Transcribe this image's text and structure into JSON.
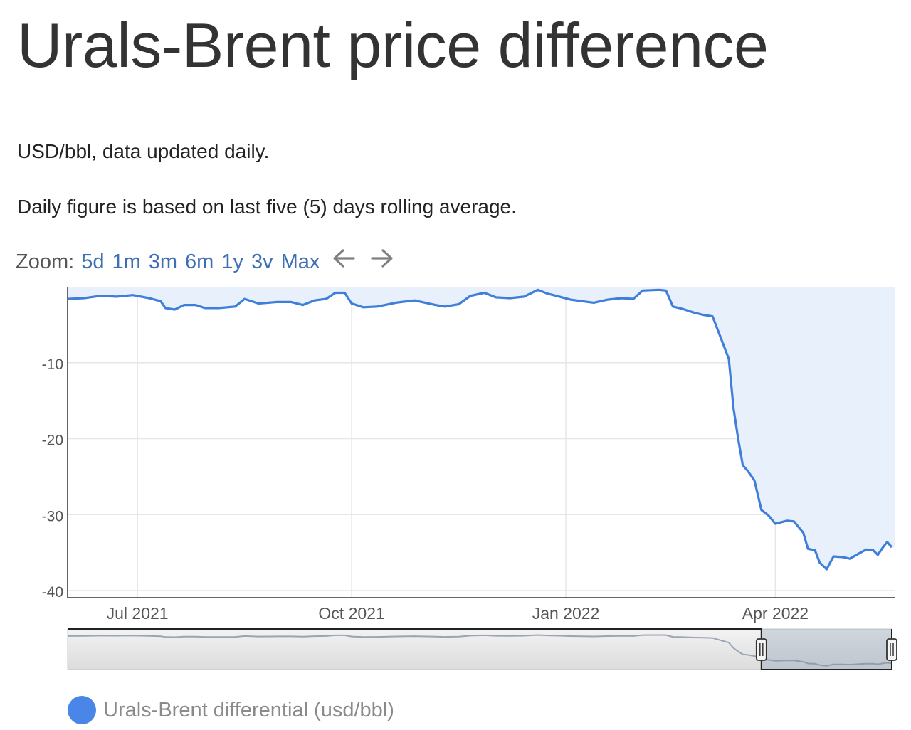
{
  "page": {
    "title": "Urals-Brent price difference",
    "desc1": "USD/bbl, data updated daily.",
    "desc2": "Daily figure is based on last five (5) days rolling average."
  },
  "zoom": {
    "label": "Zoom:",
    "options": [
      "5d",
      "1m",
      "3m",
      "6m",
      "1y",
      "3v",
      "Max"
    ],
    "back_icon": "arrow-left-icon",
    "forward_icon": "arrow-right-icon"
  },
  "colors": {
    "line": "#3f7fd9",
    "fill": "#e8f0fb",
    "grid": "#e6e6e6",
    "axis": "#333333",
    "navigator_track": "#dcdcdc",
    "zoom_link": "#3f6fb3",
    "legend_dot": "#4a86e8"
  },
  "legend": {
    "label": "Urals-Brent differential (usd/bbl)",
    "icon": "circle-marker-icon"
  },
  "chart_data": {
    "type": "area",
    "title": "",
    "xlabel": "",
    "ylabel": "",
    "x_range": [
      "2021-06-01",
      "2022-05-21"
    ],
    "ylim": [
      -40,
      0
    ],
    "y_ticks": [
      -10,
      -20,
      -30,
      -40
    ],
    "x_ticks": [
      {
        "label": "Jul 2021",
        "date": "2021-07-01"
      },
      {
        "label": "Oct 2021",
        "date": "2021-10-01"
      },
      {
        "label": "Jan 2022",
        "date": "2022-01-01"
      },
      {
        "label": "Apr 2022",
        "date": "2022-04-01"
      }
    ],
    "grid": true,
    "legend_position": "bottom-left",
    "navigator": true,
    "navigator_selection": [
      "2022-03-26",
      "2022-05-21"
    ],
    "series": [
      {
        "name": "Urals-Brent differential (usd/bbl)",
        "points": [
          [
            "2021-06-01",
            -1.6
          ],
          [
            "2021-06-08",
            -1.5
          ],
          [
            "2021-06-15",
            -1.2
          ],
          [
            "2021-06-22",
            -1.3
          ],
          [
            "2021-06-29",
            -1.1
          ],
          [
            "2021-07-06",
            -1.5
          ],
          [
            "2021-07-11",
            -1.9
          ],
          [
            "2021-07-13",
            -2.8
          ],
          [
            "2021-07-17",
            -3.0
          ],
          [
            "2021-07-21",
            -2.4
          ],
          [
            "2021-07-26",
            -2.4
          ],
          [
            "2021-07-30",
            -2.8
          ],
          [
            "2021-08-05",
            -2.8
          ],
          [
            "2021-08-12",
            -2.6
          ],
          [
            "2021-08-16",
            -1.6
          ],
          [
            "2021-08-22",
            -2.2
          ],
          [
            "2021-08-30",
            -2.0
          ],
          [
            "2021-09-05",
            -2.0
          ],
          [
            "2021-09-10",
            -2.4
          ],
          [
            "2021-09-15",
            -1.8
          ],
          [
            "2021-09-20",
            -1.6
          ],
          [
            "2021-09-24",
            -0.8
          ],
          [
            "2021-09-28",
            -0.8
          ],
          [
            "2021-10-01",
            -2.2
          ],
          [
            "2021-10-06",
            -2.7
          ],
          [
            "2021-10-12",
            -2.6
          ],
          [
            "2021-10-20",
            -2.1
          ],
          [
            "2021-10-28",
            -1.8
          ],
          [
            "2021-11-06",
            -2.4
          ],
          [
            "2021-11-10",
            -2.6
          ],
          [
            "2021-11-16",
            -2.3
          ],
          [
            "2021-11-21",
            -1.2
          ],
          [
            "2021-11-27",
            -0.8
          ],
          [
            "2021-12-02",
            -1.4
          ],
          [
            "2021-12-08",
            -1.5
          ],
          [
            "2021-12-14",
            -1.3
          ],
          [
            "2021-12-20",
            -0.4
          ],
          [
            "2021-12-24",
            -0.9
          ],
          [
            "2021-12-28",
            -1.2
          ],
          [
            "2022-01-03",
            -1.7
          ],
          [
            "2022-01-08",
            -1.9
          ],
          [
            "2022-01-13",
            -2.1
          ],
          [
            "2022-01-19",
            -1.7
          ],
          [
            "2022-01-25",
            -1.5
          ],
          [
            "2022-01-30",
            -1.6
          ],
          [
            "2022-02-03",
            -0.5
          ],
          [
            "2022-02-10",
            -0.4
          ],
          [
            "2022-02-13",
            -0.5
          ],
          [
            "2022-02-16",
            -2.6
          ],
          [
            "2022-02-20",
            -2.9
          ],
          [
            "2022-02-25",
            -3.4
          ],
          [
            "2022-03-01",
            -3.7
          ],
          [
            "2022-03-05",
            -3.9
          ],
          [
            "2022-03-10",
            -7.9
          ],
          [
            "2022-03-12",
            -9.5
          ],
          [
            "2022-03-14",
            -16.0
          ],
          [
            "2022-03-16",
            -20.0
          ],
          [
            "2022-03-18",
            -23.5
          ],
          [
            "2022-03-20",
            -24.2
          ],
          [
            "2022-03-23",
            -25.5
          ],
          [
            "2022-03-26",
            -29.4
          ],
          [
            "2022-03-29",
            -30.1
          ],
          [
            "2022-04-01",
            -31.2
          ],
          [
            "2022-04-06",
            -30.8
          ],
          [
            "2022-04-09",
            -30.9
          ],
          [
            "2022-04-13",
            -32.4
          ],
          [
            "2022-04-15",
            -34.5
          ],
          [
            "2022-04-18",
            -34.7
          ],
          [
            "2022-04-20",
            -36.3
          ],
          [
            "2022-04-23",
            -37.2
          ],
          [
            "2022-04-26",
            -35.5
          ],
          [
            "2022-04-30",
            -35.6
          ],
          [
            "2022-05-03",
            -35.8
          ],
          [
            "2022-05-07",
            -35.1
          ],
          [
            "2022-05-10",
            -34.6
          ],
          [
            "2022-05-13",
            -34.7
          ],
          [
            "2022-05-15",
            -35.3
          ],
          [
            "2022-05-17",
            -34.4
          ],
          [
            "2022-05-19",
            -33.6
          ],
          [
            "2022-05-21",
            -34.3
          ]
        ]
      }
    ]
  }
}
